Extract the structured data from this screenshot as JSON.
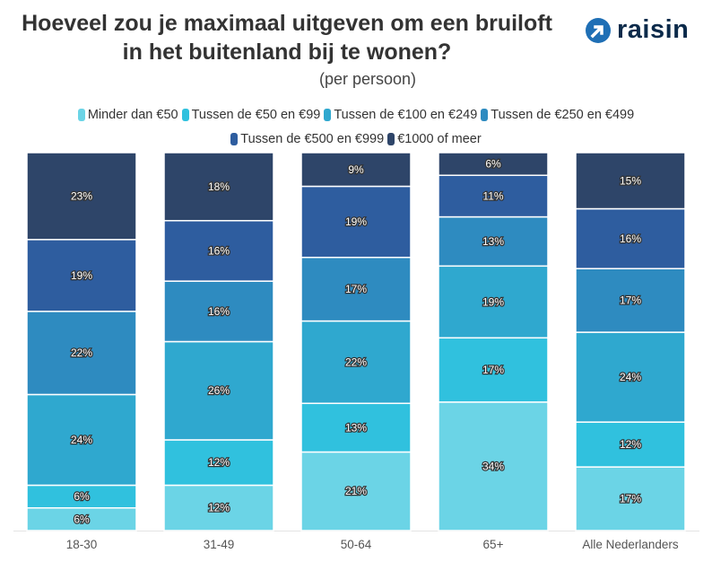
{
  "title": "Hoeveel zou je maximaal uitgeven om een bruiloft in het buitenland bij te wonen?",
  "subtitle": "(per persoon)",
  "logo": {
    "text": "raisin",
    "icon": "arrow-circle-icon",
    "color": "#1f6fb5"
  },
  "chart_data": {
    "type": "bar",
    "stacked": true,
    "normalized": true,
    "title": "Hoeveel zou je maximaal uitgeven om een bruiloft in het buitenland bij te wonen?",
    "subtitle": "(per persoon)",
    "categories": [
      "18-30",
      "31-49",
      "50-64",
      "65+",
      "Alle Nederlanders"
    ],
    "legend_position": "top",
    "grid": false,
    "series": [
      {
        "name": "Minder dan €50",
        "color": "#6bd4e6",
        "values": [
          6,
          12,
          21,
          34,
          17
        ]
      },
      {
        "name": "Tussen de €50 en €99",
        "color": "#30c1de",
        "values": [
          6,
          12,
          13,
          17,
          12
        ]
      },
      {
        "name": "Tussen de €100 en €249",
        "color": "#2fa8cf",
        "values": [
          24,
          26,
          22,
          19,
          24
        ]
      },
      {
        "name": "Tussen de €250 en €499",
        "color": "#2e8bc0",
        "values": [
          22,
          16,
          17,
          13,
          17
        ]
      },
      {
        "name": "Tussen de €500 en €999",
        "color": "#2e5d9f",
        "values": [
          19,
          16,
          19,
          11,
          16
        ]
      },
      {
        "name": "€1000 of meer",
        "color": "#2e4569",
        "values": [
          23,
          18,
          9,
          6,
          15
        ]
      }
    ]
  }
}
